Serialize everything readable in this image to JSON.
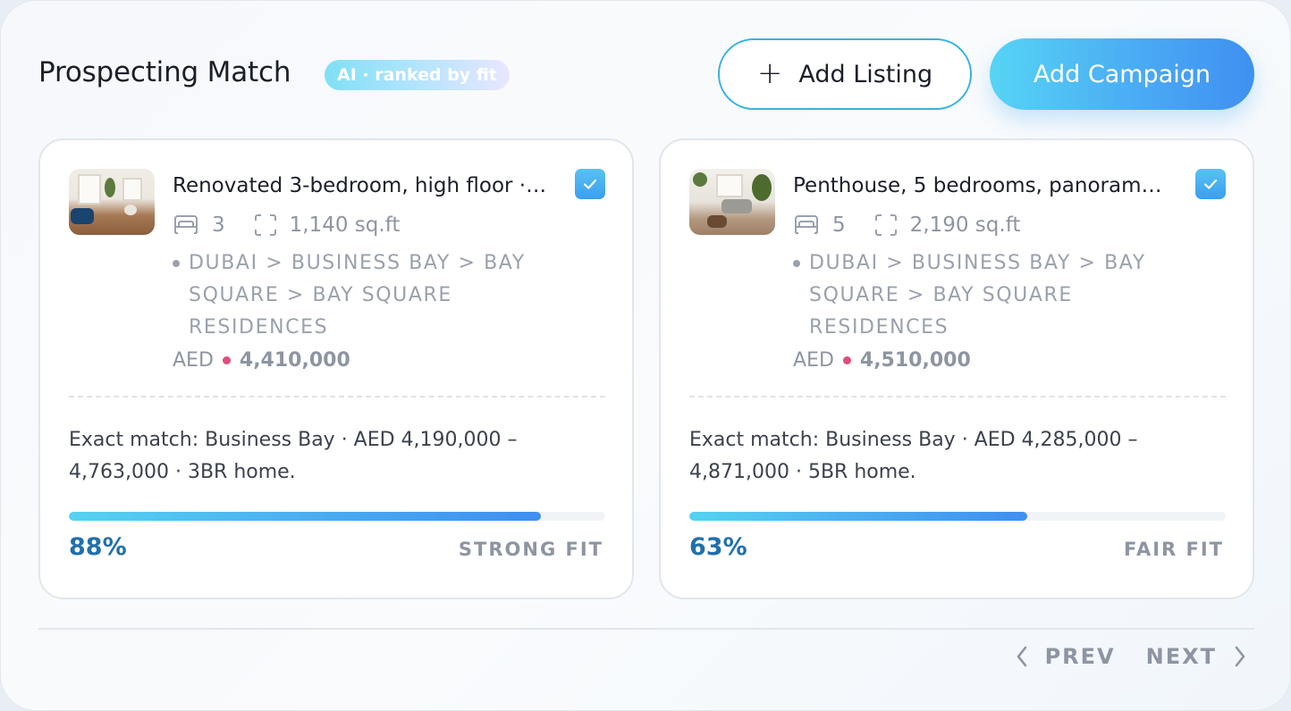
{
  "header": {
    "title": "Prospecting Match",
    "badge": "AI · ranked by fit",
    "add_listing_label": "Add Listing",
    "add_campaign_label": "Add Campaign"
  },
  "icons": {
    "add_listing": "plus-icon",
    "checkbox": "check-icon",
    "beds": "bed-icon",
    "area": "area-icon",
    "prev": "chevron-left-icon",
    "next": "chevron-right-icon"
  },
  "colors": {
    "accent": "#4aa8f4",
    "accent_light": "#56d4f5",
    "percent": "#2170ac",
    "price_dot": "#e04c7c",
    "muted": "#8e95a2"
  },
  "listings": [
    {
      "title": "Renovated 3-bedroom, high floor ·…",
      "beds": "3",
      "area": "1,140 sq.ft",
      "location": "DUBAI > BUSINESS BAY > BAY SQUARE > BAY SQUARE RESIDENCES",
      "currency": "AED",
      "price": "4,410,000",
      "selected": true,
      "match_text": "Exact match: Business Bay · AED 4,190,000 – 4,763,000 · 3BR home.",
      "fit_percent": "88%",
      "fit_fraction": 0.88,
      "fit_label": "STRONG FIT"
    },
    {
      "title": "Penthouse, 5 bedrooms, panoram…",
      "beds": "5",
      "area": "2,190 sq.ft",
      "location": "DUBAI > BUSINESS BAY > BAY SQUARE > BAY SQUARE RESIDENCES",
      "currency": "AED",
      "price": "4,510,000",
      "selected": true,
      "match_text": "Exact match: Business Bay · AED 4,285,000 – 4,871,000 · 5BR home.",
      "fit_percent": "63%",
      "fit_fraction": 0.63,
      "fit_label": "FAIR FIT"
    }
  ],
  "pagination": {
    "prev_label": "PREV",
    "next_label": "NEXT"
  }
}
